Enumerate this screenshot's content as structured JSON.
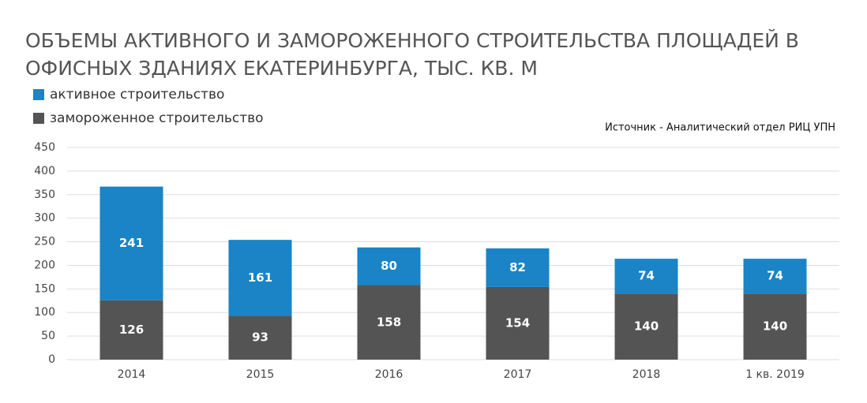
{
  "chart_data": {
    "type": "bar",
    "stacked": true,
    "title": [
      "ОБЪЕМЫ АКТИВНОГО И ЗАМОРОЖЕННОГО СТРОИТЕЛЬСТВА ПЛОЩАДЕЙ В",
      "ОФИСНЫХ ЗДАНИЯХ ЕКАТЕРИНБУРГА, ТЫС. КВ. М"
    ],
    "source": "Источник - Аналитический отдел РИЦ УПН",
    "categories": [
      "2014",
      "2015",
      "2016",
      "2017",
      "2018",
      "1 кв. 2019"
    ],
    "series": [
      {
        "name": "активное строительство",
        "color": "#1a84c6",
        "values": [
          241,
          161,
          80,
          82,
          74,
          74
        ]
      },
      {
        "name": "замороженное строительство",
        "color": "#545454",
        "values": [
          126,
          93,
          158,
          154,
          140,
          140
        ]
      }
    ],
    "ylim": [
      0,
      450
    ],
    "yticks": [
      0,
      50,
      100,
      150,
      200,
      250,
      300,
      350,
      400,
      450
    ],
    "grid": true
  }
}
